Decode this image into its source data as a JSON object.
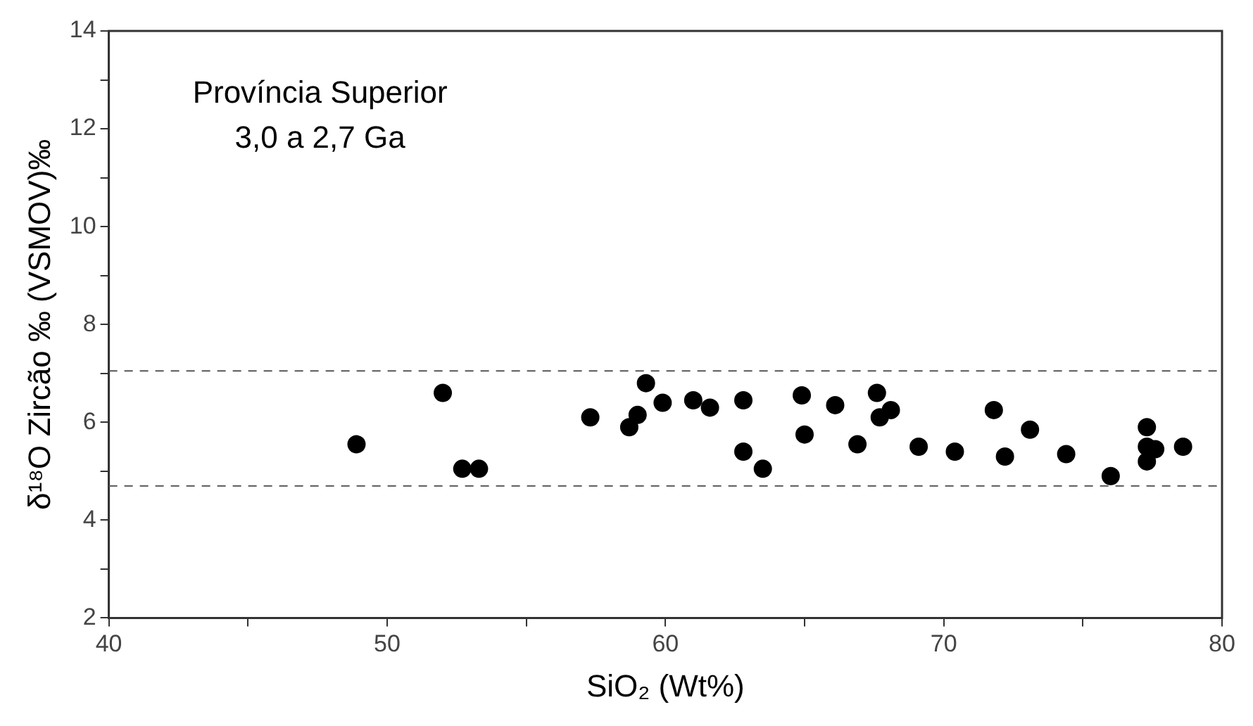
{
  "chart_data": {
    "type": "scatter",
    "xlabel": "SiO₂ (Wt%)",
    "ylabel": "δ¹⁸O Zircão ‰ (VSMOV)‰",
    "annotations": [
      "Província Superior",
      "3,0 a 2,7 Ga"
    ],
    "x": [
      48.9,
      52,
      52.7,
      53.3,
      57.3,
      58.7,
      59,
      59.3,
      59.9,
      61,
      61.6,
      62.8,
      62.8,
      63.5,
      64.9,
      65,
      66.1,
      66.9,
      67.6,
      67.7,
      68.1,
      69.1,
      70.4,
      71.8,
      72.2,
      73.1,
      74.4,
      76,
      77.3,
      77.3,
      77.3,
      77.6,
      78.6
    ],
    "series": [
      {
        "color": "#000000",
        "values": [
          5.55,
          6.6,
          5.05,
          5.05,
          6.1,
          5.9,
          6.15,
          6.8,
          6.4,
          6.45,
          6.3,
          6.45,
          5.4,
          5.05,
          6.55,
          5.75,
          6.35,
          5.55,
          6.6,
          6.1,
          6.25,
          5.5,
          5.4,
          6.25,
          5.3,
          5.85,
          5.35,
          4.9,
          5.9,
          5.5,
          5.2,
          5.45,
          5.5
        ]
      }
    ],
    "xlim": [
      40,
      80
    ],
    "xticks": [
      40,
      {
        "value": 45,
        "label": null
      },
      50,
      {
        "value": 55,
        "label": null
      },
      60,
      {
        "value": 65,
        "label": null
      },
      70,
      {
        "value": 75,
        "label": null
      },
      80
    ],
    "ylim": [
      2,
      14
    ],
    "yticks": [
      2,
      {
        "value": 3,
        "label": null
      },
      4,
      {
        "value": 5,
        "label": null
      },
      6,
      {
        "value": 7,
        "label": null
      },
      8,
      {
        "value": 9,
        "label": null
      },
      10,
      {
        "value": 11,
        "label": null
      },
      12,
      {
        "value": 13,
        "label": null
      },
      14
    ],
    "ref_lines": [
      {
        "axis": "y",
        "value": 7.05,
        "color": "#555555",
        "line_style": "dashed"
      },
      {
        "axis": "y",
        "value": 4.7,
        "color": "#555555",
        "line_style": "dashed"
      }
    ],
    "marker": "circle",
    "grid": false,
    "legend": false
  }
}
